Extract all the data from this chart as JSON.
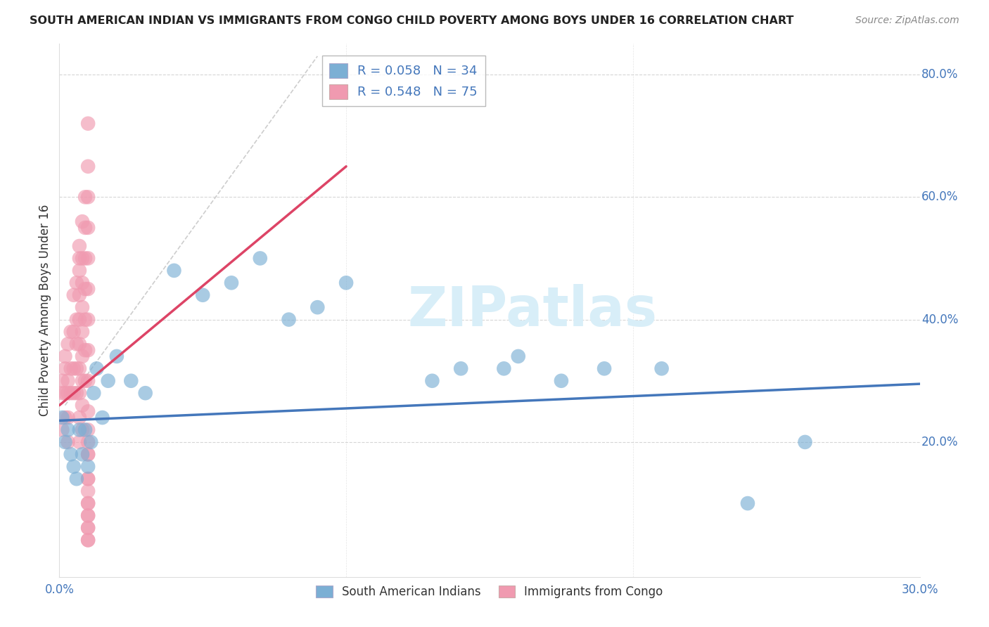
{
  "title": "SOUTH AMERICAN INDIAN VS IMMIGRANTS FROM CONGO CHILD POVERTY AMONG BOYS UNDER 16 CORRELATION CHART",
  "source": "Source: ZipAtlas.com",
  "ylabel": "Child Poverty Among Boys Under 16",
  "xlim": [
    0.0,
    0.3
  ],
  "ylim": [
    -0.02,
    0.85
  ],
  "ytick_vals": [
    0.2,
    0.4,
    0.6,
    0.8
  ],
  "ytick_labels": [
    "20.0%",
    "40.0%",
    "60.0%",
    "80.0%"
  ],
  "title_color": "#222222",
  "source_color": "#888888",
  "blue_color": "#7bafd4",
  "pink_color": "#f09ab0",
  "blue_line_color": "#4477bb",
  "pink_line_color": "#dd4466",
  "grid_color": "#cccccc",
  "axis_color": "#333333",
  "tick_color": "#4477bb",
  "background_color": "#ffffff",
  "watermark_color": "#d8eef8",
  "watermark": "ZIPatlas",
  "blue_scatter_x": [
    0.001,
    0.002,
    0.003,
    0.004,
    0.005,
    0.006,
    0.007,
    0.008,
    0.009,
    0.01,
    0.011,
    0.012,
    0.013,
    0.015,
    0.017,
    0.02,
    0.025,
    0.03,
    0.04,
    0.05,
    0.06,
    0.07,
    0.08,
    0.09,
    0.1,
    0.13,
    0.14,
    0.155,
    0.16,
    0.175,
    0.19,
    0.21,
    0.24,
    0.26
  ],
  "blue_scatter_y": [
    0.24,
    0.2,
    0.22,
    0.18,
    0.16,
    0.14,
    0.22,
    0.18,
    0.22,
    0.16,
    0.2,
    0.28,
    0.32,
    0.24,
    0.3,
    0.34,
    0.3,
    0.28,
    0.48,
    0.44,
    0.46,
    0.5,
    0.4,
    0.42,
    0.46,
    0.3,
    0.32,
    0.32,
    0.34,
    0.3,
    0.32,
    0.32,
    0.1,
    0.2
  ],
  "pink_scatter_x": [
    0.001,
    0.001,
    0.001,
    0.002,
    0.002,
    0.002,
    0.002,
    0.003,
    0.003,
    0.003,
    0.003,
    0.003,
    0.004,
    0.004,
    0.004,
    0.005,
    0.005,
    0.005,
    0.005,
    0.006,
    0.006,
    0.006,
    0.006,
    0.006,
    0.007,
    0.007,
    0.007,
    0.007,
    0.007,
    0.007,
    0.007,
    0.007,
    0.007,
    0.007,
    0.008,
    0.008,
    0.008,
    0.008,
    0.008,
    0.008,
    0.008,
    0.008,
    0.008,
    0.009,
    0.009,
    0.009,
    0.009,
    0.009,
    0.009,
    0.009,
    0.01,
    0.01,
    0.01,
    0.01,
    0.01,
    0.01,
    0.01,
    0.01,
    0.01,
    0.01,
    0.01,
    0.01,
    0.01,
    0.01,
    0.01,
    0.01,
    0.01,
    0.01,
    0.01,
    0.01,
    0.01,
    0.01,
    0.01,
    0.01,
    0.01
  ],
  "pink_scatter_y": [
    0.28,
    0.22,
    0.3,
    0.32,
    0.24,
    0.28,
    0.34,
    0.36,
    0.28,
    0.3,
    0.24,
    0.2,
    0.38,
    0.32,
    0.28,
    0.44,
    0.38,
    0.32,
    0.28,
    0.46,
    0.4,
    0.36,
    0.32,
    0.28,
    0.5,
    0.44,
    0.4,
    0.36,
    0.32,
    0.28,
    0.24,
    0.2,
    0.52,
    0.48,
    0.56,
    0.5,
    0.46,
    0.42,
    0.38,
    0.34,
    0.3,
    0.26,
    0.22,
    0.6,
    0.55,
    0.5,
    0.45,
    0.4,
    0.35,
    0.3,
    0.65,
    0.6,
    0.55,
    0.5,
    0.45,
    0.4,
    0.35,
    0.3,
    0.25,
    0.2,
    0.72,
    0.18,
    0.14,
    0.12,
    0.1,
    0.08,
    0.06,
    0.04,
    0.22,
    0.18,
    0.14,
    0.1,
    0.08,
    0.06,
    0.04
  ]
}
